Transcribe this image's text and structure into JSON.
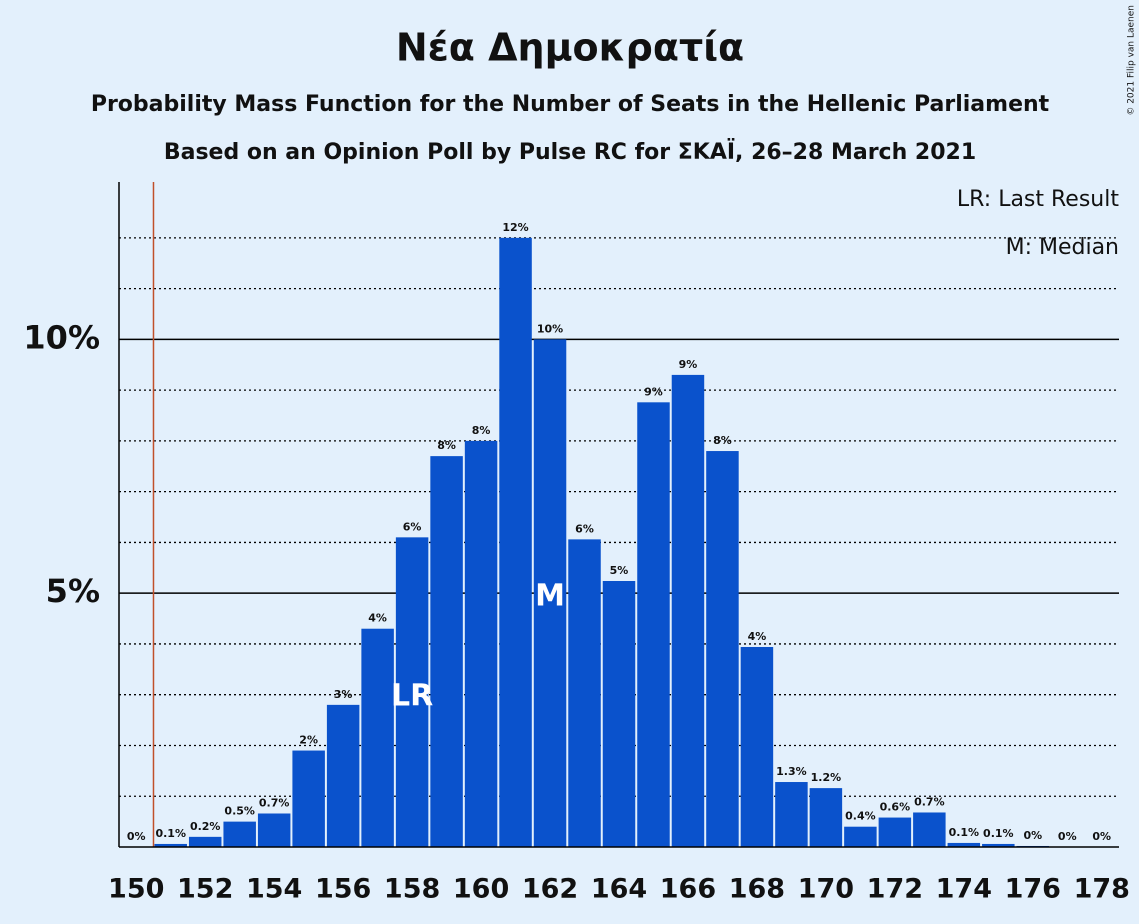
{
  "chart_data": {
    "type": "bar",
    "title": "Νέα Δημοκρατία",
    "subtitle": "Probability Mass Function for the Number of Seats in the Hellenic Parliament",
    "subtitle2": "Based on an Opinion Poll by Pulse RC for ΣΚΑΪ, 26–28 March 2021",
    "copyright": "© 2021 Filip van Laenen",
    "legend": [
      "LR: Last Result",
      "M: Median"
    ],
    "x": [
      150,
      151,
      152,
      153,
      154,
      155,
      156,
      157,
      158,
      159,
      160,
      161,
      162,
      163,
      164,
      165,
      166,
      167,
      168,
      169,
      170,
      171,
      172,
      173,
      174,
      175,
      176,
      177,
      178
    ],
    "values": [
      0,
      0.06,
      0.2,
      0.5,
      0.66,
      1.9,
      2.8,
      4.3,
      6.1,
      7.7,
      8.0,
      12.0,
      10.0,
      6.06,
      5.24,
      8.76,
      9.3,
      7.8,
      3.94,
      1.28,
      1.16,
      0.4,
      0.58,
      0.68,
      0.08,
      0.06,
      0.02,
      0,
      0
    ],
    "value_labels": [
      "0%",
      "0.1%",
      "0.2%",
      "0.5%",
      "0.7%",
      "2%",
      "3%",
      "4%",
      "6%",
      "8%",
      "8%",
      "12%",
      "10%",
      "6%",
      "5%",
      "9%",
      "9%",
      "8%",
      "4%",
      "1.3%",
      "1.2%",
      "0.4%",
      "0.6%",
      "0.7%",
      "0.1%",
      "0.1%",
      "0%",
      "0%",
      "0%"
    ],
    "color": "#0a52cc",
    "xlim": [
      149.5,
      178.5
    ],
    "xticks": [
      150,
      152,
      154,
      156,
      158,
      160,
      162,
      164,
      166,
      168,
      170,
      172,
      174,
      176,
      178
    ],
    "ylim": [
      0,
      13.1
    ],
    "yticks": [
      {
        "value": 5,
        "label": "5%"
      },
      {
        "value": 10,
        "label": "10%"
      }
    ],
    "minor_gridlines": [
      1,
      2,
      3,
      4,
      6,
      7,
      8,
      9,
      11,
      12
    ],
    "grid": true,
    "last_result_line": {
      "x": 150.5,
      "color": "#c0502a"
    },
    "annotations": [
      {
        "x": 158,
        "text": "LR"
      },
      {
        "x": 162,
        "text": "M"
      }
    ]
  }
}
